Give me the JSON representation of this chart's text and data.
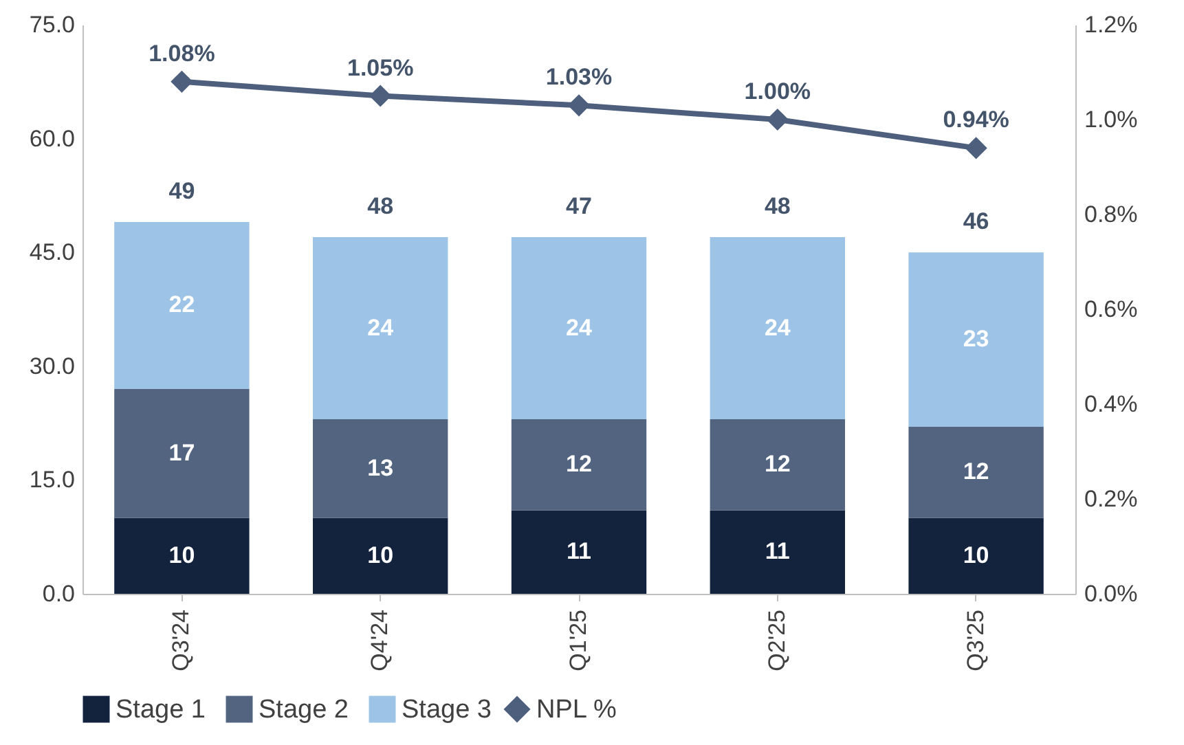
{
  "chart_data": {
    "type": "bar",
    "stacked": true,
    "categories": [
      "Q3'24",
      "Q4'24",
      "Q1'25",
      "Q2'25",
      "Q3'25"
    ],
    "series": [
      {
        "name": "Stage 1",
        "color": "#13233d",
        "values": [
          10,
          10,
          11,
          11,
          10
        ],
        "value_labels": [
          "10",
          "10",
          "11",
          "11",
          "10"
        ]
      },
      {
        "name": "Stage 2",
        "color": "#536480",
        "values": [
          17,
          13,
          12,
          12,
          12
        ],
        "value_labels": [
          "17",
          "13",
          "12",
          "12",
          "12"
        ]
      },
      {
        "name": "Stage 3",
        "color": "#9dc3e6",
        "values": [
          22,
          24,
          24,
          24,
          23
        ],
        "value_labels": [
          "22",
          "24",
          "24",
          "24",
          "23"
        ]
      },
      {
        "name": "NPL %",
        "type": "line",
        "axis": "y2",
        "color": "#4d5f7c",
        "marker": "diamond",
        "values": [
          1.08,
          1.05,
          1.03,
          1.0,
          0.94
        ],
        "value_labels": [
          "1.08%",
          "1.05%",
          "1.03%",
          "1.00%",
          "0.94%"
        ]
      }
    ],
    "totals": [
      "49",
      "48",
      "47",
      "48",
      "46"
    ],
    "ylim": [
      0,
      75
    ],
    "yticks": [
      {
        "value": 0,
        "label": "0.0"
      },
      {
        "value": 15,
        "label": "15.0"
      },
      {
        "value": 30,
        "label": "30.0"
      },
      {
        "value": 45,
        "label": "45.0"
      },
      {
        "value": 60,
        "label": "60.0"
      },
      {
        "value": 75,
        "label": "75.0"
      }
    ],
    "y2lim": [
      0,
      1.2
    ],
    "y2ticks": [
      {
        "value": 0,
        "label": "0.0%"
      },
      {
        "value": 0.2,
        "label": "0.2%"
      },
      {
        "value": 0.4,
        "label": "0.4%"
      },
      {
        "value": 0.6,
        "label": "0.6%"
      },
      {
        "value": 0.8,
        "label": "0.8%"
      },
      {
        "value": 1.0,
        "label": "1.0%"
      },
      {
        "value": 1.2,
        "label": "1.2%"
      }
    ],
    "grid": false,
    "legend": "bottom"
  }
}
